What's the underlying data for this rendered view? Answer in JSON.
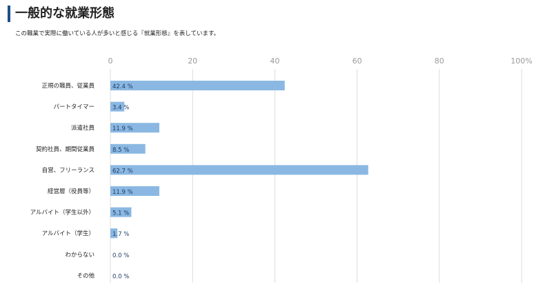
{
  "header": {
    "title": "一般的な就業形態",
    "subtitle": "この職業で実際に働いている人が多いと感じる『就業形態』を表しています。"
  },
  "colors": {
    "accent_bar": "#1b4f8a",
    "bar_fill": "#8ab8e2",
    "value_text": "#1f3b66",
    "grid": "#dcdcdc",
    "tick_text": "#999999"
  },
  "chart_data": {
    "type": "bar",
    "orientation": "horizontal",
    "categories": [
      "正規の職員、従業員",
      "パートタイマー",
      "派遣社員",
      "契約社員、期間従業員",
      "自営、フリーランス",
      "経営層（役員等）",
      "アルバイト（学生以外）",
      "アルバイト（学生）",
      "わからない",
      "その他"
    ],
    "values": [
      42.4,
      3.4,
      11.9,
      8.5,
      62.7,
      11.9,
      5.1,
      1.7,
      0.0,
      0.0
    ],
    "value_labels": [
      "42.4 %",
      "3.4 %",
      "11.9 %",
      "8.5 %",
      "62.7 %",
      "11.9 %",
      "5.1 %",
      "1.7 %",
      "0.0 %",
      "0.0 %"
    ],
    "xlim": [
      0,
      100
    ],
    "x_ticks": [
      0,
      20,
      40,
      60,
      80,
      100
    ],
    "x_tick_labels": [
      "0",
      "20",
      "40",
      "60",
      "80",
      "100%"
    ],
    "grid": true,
    "axis_position": "top"
  }
}
